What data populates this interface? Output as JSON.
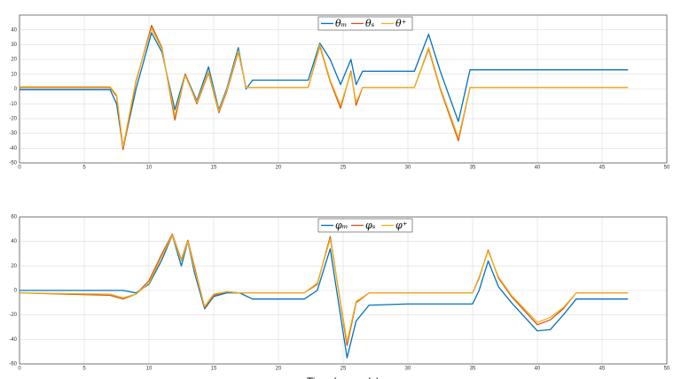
{
  "chart_data": [
    {
      "type": "line",
      "legend": "north",
      "grid": true,
      "xlim": [
        0,
        50
      ],
      "xticks": [
        0,
        5,
        10,
        15,
        20,
        25,
        30,
        35,
        40,
        45,
        50
      ],
      "ylim": [
        -50,
        50
      ],
      "yticks": [
        -50,
        -40,
        -30,
        -20,
        -10,
        0,
        10,
        20,
        30,
        40
      ],
      "x": [
        0,
        7,
        7.5,
        8,
        9,
        10.2,
        11,
        12,
        12.8,
        13.7,
        14.6,
        15.4,
        16,
        16.9,
        17.5,
        18,
        22.3,
        23.2,
        24,
        24.8,
        25.6,
        26,
        26.5,
        30.5,
        31.6,
        32.5,
        33.9,
        34.8,
        47
      ],
      "series": [
        {
          "name": "θₘ",
          "color": "#0072bd",
          "values": [
            -0.5,
            -0.5,
            -10,
            -40,
            0,
            38,
            25,
            -14,
            10,
            -8,
            15,
            -14,
            0,
            28,
            0,
            6,
            6,
            31,
            20,
            3,
            20,
            3,
            12,
            12,
            37,
            12,
            -22,
            13,
            13
          ]
        },
        {
          "name": "θₛ",
          "color": "#d95319",
          "values": [
            1,
            1,
            -5,
            -41,
            5,
            43,
            28,
            -21,
            10,
            -10,
            11,
            -16,
            -2,
            25,
            1,
            1,
            1,
            29,
            5,
            -13,
            12,
            -11,
            1,
            1,
            27,
            0,
            -35,
            1,
            1
          ]
        },
        {
          "name": "θ⁺",
          "color": "#edb120",
          "values": [
            1.5,
            1.5,
            -4,
            -39,
            6,
            41,
            27,
            -18,
            9,
            -9,
            12,
            -15,
            -1,
            26,
            1,
            1,
            1,
            30,
            6,
            -11,
            11,
            -9,
            1,
            1,
            28,
            1,
            -33,
            1,
            1
          ]
        }
      ]
    },
    {
      "type": "line",
      "legend": "north",
      "grid": true,
      "xlabel": "Time (seconds)",
      "xlim": [
        0,
        50
      ],
      "xticks": [
        0,
        5,
        10,
        15,
        20,
        25,
        30,
        35,
        40,
        45,
        50
      ],
      "ylim": [
        -60,
        60
      ],
      "yticks": [
        -60,
        -40,
        -20,
        0,
        20,
        40,
        60
      ],
      "x": [
        0,
        7,
        8,
        9,
        10,
        11,
        11.8,
        12.5,
        13,
        13.5,
        14.3,
        15,
        16,
        17,
        18,
        22,
        23,
        24,
        25.3,
        26,
        27,
        30,
        35,
        35.5,
        36.2,
        37,
        38,
        40,
        41,
        42,
        43,
        47
      ],
      "series": [
        {
          "name": "φₘ",
          "color": "#0072bd",
          "values": [
            0,
            0,
            0,
            -2,
            5,
            25,
            45,
            20,
            40,
            15,
            -15,
            -5,
            -2,
            -2,
            -7,
            -7,
            0,
            34,
            -55,
            -25,
            -12,
            -11,
            -11,
            0,
            24,
            3,
            -10,
            -33,
            -32,
            -20,
            -7,
            -7
          ]
        },
        {
          "name": "φₛ",
          "color": "#d95319",
          "values": [
            -2,
            -4,
            -7,
            -3,
            8,
            30,
            46,
            25,
            41,
            20,
            -14,
            -4,
            -1,
            -2,
            -2,
            -2,
            5,
            44,
            -45,
            -10,
            -2,
            -2,
            -2,
            10,
            33,
            10,
            -5,
            -28,
            -24,
            -15,
            -2,
            -2
          ]
        },
        {
          "name": "φ⁺",
          "color": "#edb120",
          "values": [
            -2,
            -3,
            -6,
            -3,
            6,
            28,
            45,
            24,
            40,
            18,
            -13,
            -3,
            -1,
            -2,
            -2,
            -2,
            6,
            42,
            -42,
            -9,
            -2,
            -2,
            -2,
            11,
            32,
            11,
            -4,
            -26,
            -22,
            -14,
            -2,
            -2
          ]
        }
      ]
    }
  ]
}
